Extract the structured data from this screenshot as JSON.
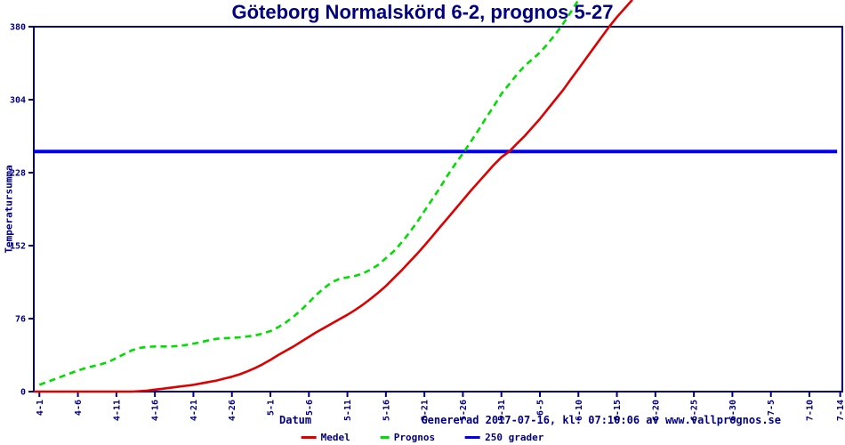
{
  "title": "Göteborg Normalskörd 6-2, prognos 5-27",
  "xlabel": "Datum",
  "ylabel": "Temperatursumma",
  "footer": "Genererad 2017-07-16, kl: 07:10:06 av www.vallprognos.se",
  "colors": {
    "axis": "#000080",
    "background": "#ffffff",
    "medel": "#dd0000",
    "prognos": "#00dd00",
    "ref_line": "#0000ee"
  },
  "legend": [
    {
      "name": "Medel",
      "color": "#dd0000",
      "style": "solid"
    },
    {
      "name": "Prognos",
      "color": "#00dd00",
      "style": "dashed"
    },
    {
      "name": "250 grader",
      "color": "#0000ee",
      "style": "solid"
    }
  ],
  "chart_data": {
    "type": "line",
    "title": "Göteborg Normalskörd 6-2, prognos 5-27",
    "xlabel": "Datum",
    "ylabel": "Temperatursumma",
    "x_tick_labels": [
      "4-1",
      "4-6",
      "4-11",
      "4-16",
      "4-21",
      "4-26",
      "5-1",
      "5-6",
      "5-11",
      "5-16",
      "5-21",
      "5-26",
      "5-31",
      "6-5",
      "6-10",
      "6-15",
      "6-20",
      "6-25",
      "6-30",
      "7-5",
      "7-10",
      "7-14"
    ],
    "x_tick_days": [
      0,
      5,
      10,
      15,
      20,
      25,
      30,
      35,
      40,
      45,
      50,
      55,
      60,
      65,
      70,
      75,
      80,
      85,
      90,
      95,
      100,
      104
    ],
    "y_ticks": [
      0,
      76,
      152,
      228,
      304,
      380
    ],
    "ylim": [
      0,
      380
    ],
    "xlim_days": [
      0,
      104
    ],
    "grid": false,
    "legend_position": "bottom",
    "ref_line": {
      "label": "250 grader",
      "value": 250,
      "color": "#0000ee",
      "x_start_day": -0.7,
      "x_end_day": 103.6
    },
    "series": [
      {
        "name": "Medel",
        "color": "#dd0000",
        "style": "solid",
        "points": [
          [
            -0.7,
            0
          ],
          [
            0,
            0
          ],
          [
            4,
            0
          ],
          [
            8,
            0
          ],
          [
            12,
            0
          ],
          [
            13,
            0.5
          ],
          [
            14,
            1
          ],
          [
            15,
            2
          ],
          [
            16,
            3
          ],
          [
            17,
            4
          ],
          [
            18,
            5
          ],
          [
            19,
            6
          ],
          [
            20,
            7
          ],
          [
            21,
            8.5
          ],
          [
            22,
            10
          ],
          [
            23,
            11.5
          ],
          [
            24,
            13.5
          ],
          [
            25,
            15.5
          ],
          [
            26,
            18
          ],
          [
            27,
            21
          ],
          [
            28,
            24.5
          ],
          [
            29,
            28.5
          ],
          [
            30,
            33
          ],
          [
            31,
            38
          ],
          [
            32,
            42.5
          ],
          [
            33,
            47
          ],
          [
            34,
            52
          ],
          [
            35,
            57
          ],
          [
            36,
            62
          ],
          [
            37,
            66.5
          ],
          [
            38,
            71
          ],
          [
            39,
            75.5
          ],
          [
            40,
            80
          ],
          [
            41,
            85
          ],
          [
            42,
            90.5
          ],
          [
            43,
            96.5
          ],
          [
            44,
            103
          ],
          [
            45,
            110
          ],
          [
            46,
            118
          ],
          [
            47,
            126
          ],
          [
            48,
            134.5
          ],
          [
            49,
            143
          ],
          [
            50,
            152
          ],
          [
            51,
            161.5
          ],
          [
            52,
            171
          ],
          [
            53,
            180.5
          ],
          [
            54,
            190
          ],
          [
            55,
            199.5
          ],
          [
            56,
            209
          ],
          [
            57,
            218
          ],
          [
            58,
            227
          ],
          [
            59,
            236
          ],
          [
            60,
            244
          ],
          [
            61,
            250
          ],
          [
            62,
            258
          ],
          [
            63,
            266
          ],
          [
            64,
            275
          ],
          [
            65,
            284
          ],
          [
            66,
            294
          ],
          [
            67,
            304
          ],
          [
            68,
            314
          ],
          [
            69,
            325
          ],
          [
            70,
            336
          ],
          [
            71,
            347
          ],
          [
            72,
            358
          ],
          [
            73,
            369
          ],
          [
            74,
            380
          ],
          [
            75,
            390
          ],
          [
            76,
            399
          ],
          [
            77,
            408
          ]
        ]
      },
      {
        "name": "Prognos",
        "color": "#00dd00",
        "style": "dashed",
        "points": [
          [
            0,
            7
          ],
          [
            1,
            10
          ],
          [
            2,
            13
          ],
          [
            3,
            16
          ],
          [
            4,
            19
          ],
          [
            5,
            22
          ],
          [
            6,
            24.5
          ],
          [
            7,
            26.5
          ],
          [
            8,
            28.5
          ],
          [
            9,
            31
          ],
          [
            10,
            35
          ],
          [
            11,
            39
          ],
          [
            12,
            43
          ],
          [
            13,
            45.5
          ],
          [
            14,
            46.5
          ],
          [
            15,
            47
          ],
          [
            16,
            47
          ],
          [
            17,
            47
          ],
          [
            18,
            47.5
          ],
          [
            19,
            48.5
          ],
          [
            20,
            50
          ],
          [
            21,
            51.5
          ],
          [
            22,
            53.5
          ],
          [
            23,
            55
          ],
          [
            24,
            55.5
          ],
          [
            25,
            56
          ],
          [
            26,
            56.5
          ],
          [
            27,
            57.5
          ],
          [
            28,
            58.5
          ],
          [
            29,
            60.5
          ],
          [
            30,
            63
          ],
          [
            31,
            67
          ],
          [
            32,
            72
          ],
          [
            33,
            78
          ],
          [
            34,
            85
          ],
          [
            35,
            93
          ],
          [
            36,
            101
          ],
          [
            37,
            108
          ],
          [
            38,
            114
          ],
          [
            39,
            117.5
          ],
          [
            40,
            119
          ],
          [
            41,
            120.5
          ],
          [
            42,
            123
          ],
          [
            43,
            127
          ],
          [
            44,
            132
          ],
          [
            45,
            139
          ],
          [
            46,
            146
          ],
          [
            47,
            155
          ],
          [
            48,
            165
          ],
          [
            49,
            176
          ],
          [
            50,
            188
          ],
          [
            51,
            200
          ],
          [
            52,
            212
          ],
          [
            53,
            225
          ],
          [
            54,
            237
          ],
          [
            55,
            248
          ],
          [
            56,
            260
          ],
          [
            57,
            272
          ],
          [
            58,
            285
          ],
          [
            59,
            297
          ],
          [
            60,
            310
          ],
          [
            61,
            320
          ],
          [
            62,
            330
          ],
          [
            63,
            339
          ],
          [
            64,
            346
          ],
          [
            65,
            353
          ],
          [
            66,
            362
          ],
          [
            67,
            372
          ],
          [
            68,
            383
          ],
          [
            69,
            395
          ],
          [
            70,
            408
          ]
        ]
      }
    ]
  }
}
